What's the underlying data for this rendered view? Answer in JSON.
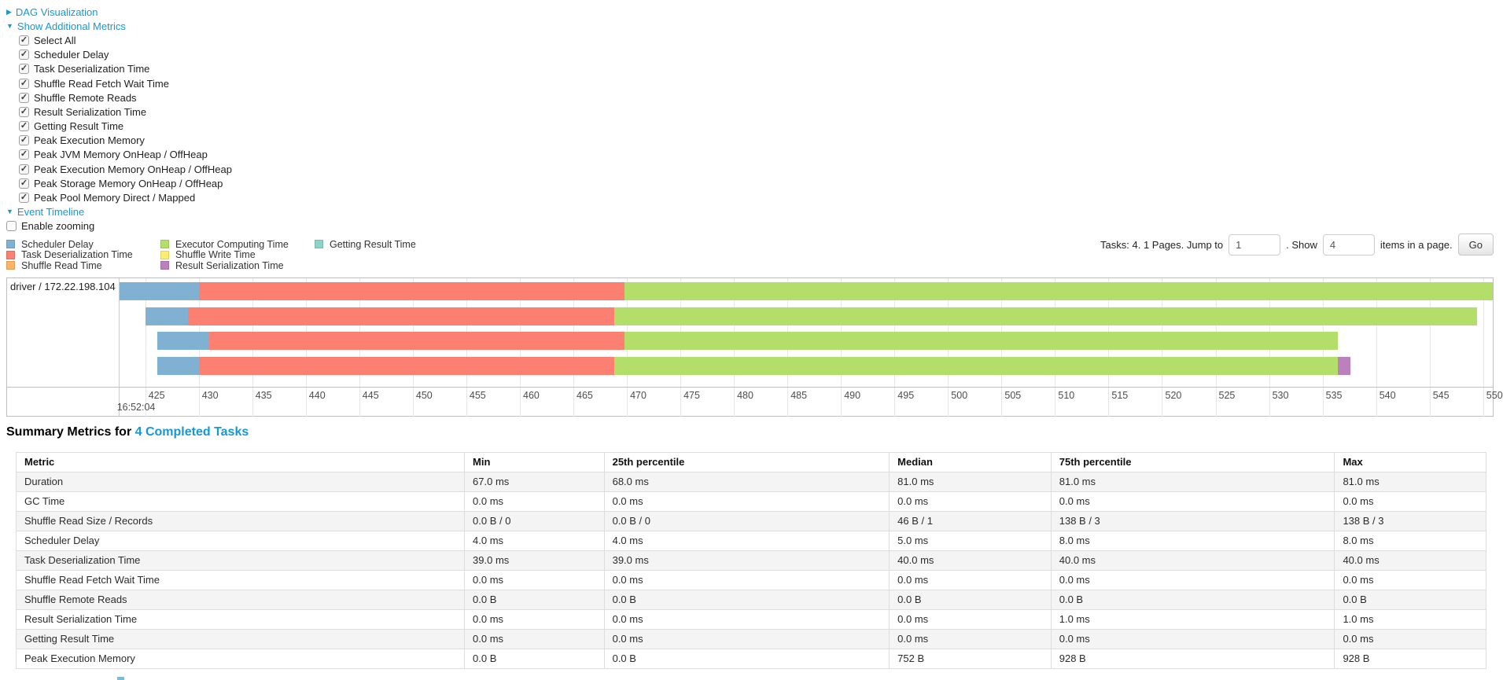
{
  "accent_color": "#1498d6",
  "sections": {
    "dag": {
      "label": "DAG Visualization",
      "state": "collapsed"
    },
    "additional_metrics": {
      "label": "Show Additional Metrics",
      "state": "expanded"
    },
    "event_timeline": {
      "label": "Event Timeline",
      "state": "expanded"
    }
  },
  "metric_checkboxes": [
    {
      "label": "Select All",
      "checked": true
    },
    {
      "label": "Scheduler Delay",
      "checked": true
    },
    {
      "label": "Task Deserialization Time",
      "checked": true
    },
    {
      "label": "Shuffle Read Fetch Wait Time",
      "checked": true
    },
    {
      "label": "Shuffle Remote Reads",
      "checked": true
    },
    {
      "label": "Result Serialization Time",
      "checked": true
    },
    {
      "label": "Getting Result Time",
      "checked": true
    },
    {
      "label": "Peak Execution Memory",
      "checked": true
    },
    {
      "label": "Peak JVM Memory OnHeap / OffHeap",
      "checked": true
    },
    {
      "label": "Peak Execution Memory OnHeap / OffHeap",
      "checked": true
    },
    {
      "label": "Peak Storage Memory OnHeap / OffHeap",
      "checked": true
    },
    {
      "label": "Peak Pool Memory Direct / Mapped",
      "checked": true
    }
  ],
  "enable_zooming": {
    "label": "Enable zooming",
    "checked": false
  },
  "colors": {
    "scheduler_delay": "#80B1D3",
    "task_deserialization": "#FB8072",
    "shuffle_read": "#FDB462",
    "executor_computing": "#B3DE69",
    "shuffle_write": "#FFED6F",
    "result_serialization": "#BC80BD",
    "getting_result": "#8DD3C7"
  },
  "legend_columns": [
    [
      {
        "label": "Scheduler Delay",
        "color_key": "scheduler_delay"
      },
      {
        "label": "Task Deserialization Time",
        "color_key": "task_deserialization"
      },
      {
        "label": "Shuffle Read Time",
        "color_key": "shuffle_read"
      }
    ],
    [
      {
        "label": "Executor Computing Time",
        "color_key": "executor_computing"
      },
      {
        "label": "Shuffle Write Time",
        "color_key": "shuffle_write"
      },
      {
        "label": "Result Serialization Time",
        "color_key": "result_serialization"
      }
    ],
    [
      {
        "label": "Getting Result Time",
        "color_key": "getting_result"
      }
    ]
  ],
  "pagination": {
    "tasks_text": "Tasks: 4. 1 Pages. Jump to",
    "jump_value": "1",
    "show_text": ". Show",
    "show_value": "4",
    "items_text": "items in a page.",
    "go_label": "Go"
  },
  "chart_data": {
    "type": "timeline",
    "title": "Event Timeline",
    "group_label": "driver / 172.22.198.104",
    "axis": {
      "min": 422.6,
      "max": 550.9,
      "first_tick": 425,
      "last_tick": 550,
      "tick_step": 5,
      "major_time_label": "16:52:04",
      "units": "ms"
    },
    "tasks": [
      {
        "segments": [
          {
            "type": "scheduler_delay",
            "start": 422.6,
            "end": 430.0
          },
          {
            "type": "task_deserialization",
            "start": 430.0,
            "end": 469.8
          },
          {
            "type": "executor_computing",
            "start": 469.8,
            "end": 550.9
          }
        ]
      },
      {
        "segments": [
          {
            "type": "scheduler_delay",
            "start": 425.0,
            "end": 429.0
          },
          {
            "type": "task_deserialization",
            "start": 429.0,
            "end": 468.8
          },
          {
            "type": "executor_computing",
            "start": 468.8,
            "end": 549.4
          }
        ]
      },
      {
        "segments": [
          {
            "type": "scheduler_delay",
            "start": 426.1,
            "end": 431.0
          },
          {
            "type": "task_deserialization",
            "start": 431.0,
            "end": 469.8
          },
          {
            "type": "executor_computing",
            "start": 469.8,
            "end": 536.4
          }
        ]
      },
      {
        "segments": [
          {
            "type": "scheduler_delay",
            "start": 426.1,
            "end": 430.0
          },
          {
            "type": "task_deserialization",
            "start": 430.0,
            "end": 468.8
          },
          {
            "type": "executor_computing",
            "start": 468.8,
            "end": 536.4
          },
          {
            "type": "result_serialization",
            "start": 536.4,
            "end": 537.6
          }
        ]
      }
    ]
  },
  "summary": {
    "heading_prefix": "Summary Metrics for ",
    "heading_link": "4 Completed Tasks"
  },
  "table": {
    "headers": [
      "Metric",
      "Min",
      "25th percentile",
      "Median",
      "75th percentile",
      "Max"
    ],
    "col_widths_pct": [
      30.5,
      9.5,
      19.4,
      11.0,
      19.3,
      10.3
    ],
    "rows": [
      [
        "Duration",
        "67.0 ms",
        "68.0 ms",
        "81.0 ms",
        "81.0 ms",
        "81.0 ms"
      ],
      [
        "GC Time",
        "0.0 ms",
        "0.0 ms",
        "0.0 ms",
        "0.0 ms",
        "0.0 ms"
      ],
      [
        "Shuffle Read Size / Records",
        "0.0 B / 0",
        "0.0 B / 0",
        "46 B / 1",
        "138 B / 3",
        "138 B / 3"
      ],
      [
        "Scheduler Delay",
        "4.0 ms",
        "4.0 ms",
        "5.0 ms",
        "8.0 ms",
        "8.0 ms"
      ],
      [
        "Task Deserialization Time",
        "39.0 ms",
        "39.0 ms",
        "40.0 ms",
        "40.0 ms",
        "40.0 ms"
      ],
      [
        "Shuffle Read Fetch Wait Time",
        "0.0 ms",
        "0.0 ms",
        "0.0 ms",
        "0.0 ms",
        "0.0 ms"
      ],
      [
        "Shuffle Remote Reads",
        "0.0 B",
        "0.0 B",
        "0.0 B",
        "0.0 B",
        "0.0 B"
      ],
      [
        "Result Serialization Time",
        "0.0 ms",
        "0.0 ms",
        "0.0 ms",
        "1.0 ms",
        "1.0 ms"
      ],
      [
        "Getting Result Time",
        "0.0 ms",
        "0.0 ms",
        "0.0 ms",
        "0.0 ms",
        "0.0 ms"
      ],
      [
        "Peak Execution Memory",
        "0.0 B",
        "0.0 B",
        "752 B",
        "928 B",
        "928 B"
      ]
    ]
  }
}
